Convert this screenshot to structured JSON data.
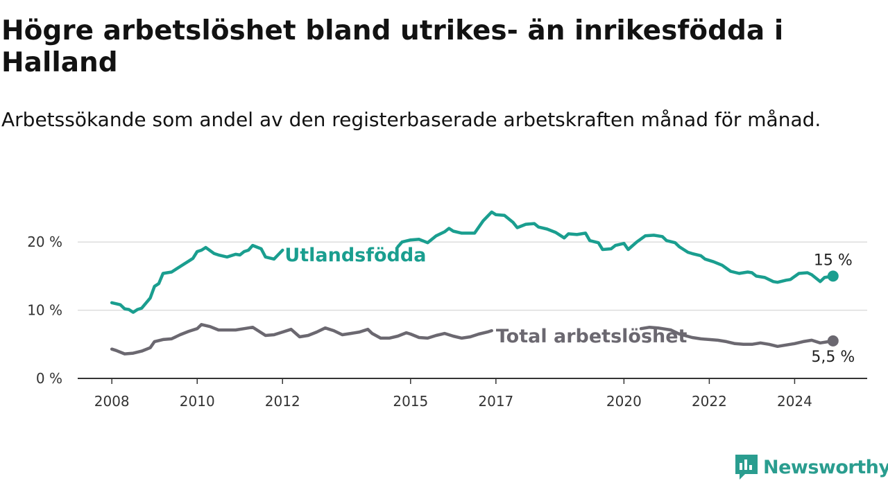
{
  "title": "Högre arbetslöshet bland utrikes- än inrikesfödda i Halland",
  "subtitle": "Arbetssökande som andel av den registerbaserade arbetskraften månad för månad.",
  "brand": {
    "name": "Newsworthy",
    "icon": "newsworthy-logo-icon",
    "color": "#2a9d8f"
  },
  "chart_data": {
    "type": "line",
    "title": "Högre arbetslöshet bland utrikes- än inrikesfödda i Halland",
    "subtitle": "Arbetssökande som andel av den registerbaserade arbetskraften månad för månad.",
    "xlabel": "",
    "ylabel": "",
    "x_ticks": [
      2008,
      2010,
      2012,
      2015,
      2017,
      2020,
      2022,
      2024
    ],
    "x_tick_labels": [
      "2008",
      "2010",
      "2012",
      "2015",
      "2017",
      "2020",
      "2022",
      "2024"
    ],
    "y_ticks": [
      0,
      10,
      20
    ],
    "y_tick_labels": [
      "0 %",
      "10 %",
      "20 %"
    ],
    "xlim": [
      2007.2,
      2025.7
    ],
    "ylim": [
      0,
      25
    ],
    "grid": "horizontal",
    "legend": "direct labels on lines",
    "series": [
      {
        "name": "Utlandsfödda",
        "color": "#1a9e8f",
        "end_label": "15 %",
        "x": [
          2008.0,
          2008.2,
          2008.3,
          2008.4,
          2008.5,
          2008.6,
          2008.7,
          2008.9,
          2009.0,
          2009.1,
          2009.2,
          2009.4,
          2009.6,
          2009.8,
          2009.9,
          2010.0,
          2010.1,
          2010.2,
          2010.4,
          2010.5,
          2010.7,
          2010.9,
          2011.0,
          2011.1,
          2011.2,
          2011.3,
          2011.5,
          2011.6,
          2011.8,
          2012.0,
          2014.7,
          2014.8,
          2015.0,
          2015.2,
          2015.4,
          2015.6,
          2015.8,
          2015.9,
          2016.0,
          2016.2,
          2016.5,
          2016.7,
          2016.9,
          2017.0,
          2017.2,
          2017.4,
          2017.5,
          2017.7,
          2017.9,
          2018.0,
          2018.2,
          2018.4,
          2018.6,
          2018.7,
          2018.9,
          2019.1,
          2019.2,
          2019.4,
          2019.5,
          2019.7,
          2019.8,
          2020.0,
          2020.1,
          2020.3,
          2020.5,
          2020.7,
          2020.9,
          2021.0,
          2021.2,
          2021.3,
          2021.5,
          2021.6,
          2021.8,
          2021.9,
          2022.1,
          2022.3,
          2022.5,
          2022.7,
          2022.9,
          2023.0,
          2023.1,
          2023.3,
          2023.5,
          2023.6,
          2023.8,
          2023.9,
          2024.1,
          2024.3,
          2024.4,
          2024.6,
          2024.7,
          2024.9
        ],
        "y": [
          11.1,
          10.8,
          10.2,
          10.1,
          9.7,
          10.1,
          10.3,
          11.8,
          13.5,
          13.9,
          15.4,
          15.6,
          16.4,
          17.2,
          17.6,
          18.6,
          18.8,
          19.2,
          18.3,
          18.1,
          17.8,
          18.2,
          18.1,
          18.6,
          18.8,
          19.5,
          19.0,
          17.8,
          17.5,
          18.8,
          19.3,
          20.0,
          20.3,
          20.4,
          19.9,
          20.9,
          21.5,
          22.0,
          21.6,
          21.3,
          21.3,
          23.1,
          24.4,
          24.0,
          23.9,
          22.9,
          22.1,
          22.6,
          22.7,
          22.2,
          21.9,
          21.4,
          20.6,
          21.2,
          21.1,
          21.3,
          20.2,
          19.9,
          18.9,
          19.0,
          19.5,
          19.8,
          18.9,
          20.0,
          20.9,
          21.0,
          20.8,
          20.2,
          19.9,
          19.3,
          18.5,
          18.3,
          18.0,
          17.5,
          17.1,
          16.6,
          15.7,
          15.4,
          15.6,
          15.5,
          15.0,
          14.8,
          14.2,
          14.1,
          14.4,
          14.5,
          15.4,
          15.5,
          15.2,
          14.2,
          14.8,
          15.0
        ]
      },
      {
        "name": "Total arbetslöshet",
        "color": "#6b6870",
        "end_label": "5,5 %",
        "x": [
          2008.0,
          2008.1,
          2008.3,
          2008.5,
          2008.7,
          2008.9,
          2009.0,
          2009.2,
          2009.4,
          2009.6,
          2009.8,
          2010.0,
          2010.1,
          2010.3,
          2010.5,
          2010.7,
          2010.9,
          2011.1,
          2011.3,
          2011.4,
          2011.6,
          2011.8,
          2012.0,
          2012.2,
          2012.4,
          2012.6,
          2012.8,
          2013.0,
          2013.2,
          2013.4,
          2013.6,
          2013.8,
          2014.0,
          2014.1,
          2014.3,
          2014.5,
          2014.7,
          2014.9,
          2015.0,
          2015.2,
          2015.4,
          2015.6,
          2015.8,
          2016.0,
          2016.2,
          2016.4,
          2016.6,
          2016.8,
          2016.9,
          2020.4,
          2020.6,
          2020.8,
          2021.1,
          2021.3,
          2021.6,
          2021.8,
          2022.0,
          2022.2,
          2022.4,
          2022.6,
          2022.8,
          2023.0,
          2023.2,
          2023.4,
          2023.6,
          2023.8,
          2024.0,
          2024.2,
          2024.4,
          2024.6,
          2024.8,
          2024.9
        ],
        "y": [
          4.3,
          4.1,
          3.6,
          3.7,
          4.0,
          4.5,
          5.4,
          5.7,
          5.8,
          6.4,
          6.9,
          7.3,
          7.9,
          7.6,
          7.1,
          7.1,
          7.1,
          7.3,
          7.5,
          7.1,
          6.3,
          6.4,
          6.8,
          7.2,
          6.1,
          6.3,
          6.8,
          7.4,
          7.0,
          6.4,
          6.6,
          6.8,
          7.2,
          6.6,
          5.9,
          5.9,
          6.2,
          6.7,
          6.5,
          6.0,
          5.9,
          6.3,
          6.6,
          6.2,
          5.9,
          6.1,
          6.5,
          6.8,
          7.0,
          7.3,
          7.5,
          7.4,
          7.1,
          6.5,
          6.0,
          5.8,
          5.7,
          5.6,
          5.4,
          5.1,
          5.0,
          5.0,
          5.2,
          5.0,
          4.7,
          4.9,
          5.1,
          5.4,
          5.6,
          5.2,
          5.4,
          5.5
        ]
      }
    ]
  }
}
